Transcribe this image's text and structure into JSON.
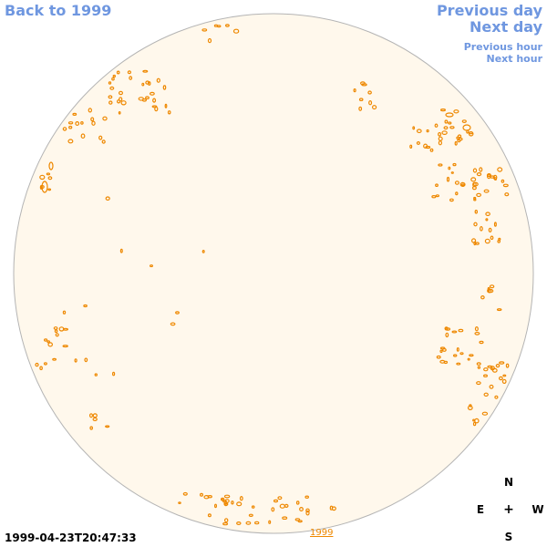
{
  "nav": {
    "back": "Back to 1999",
    "previous_day": "Previous day",
    "next_day": "Next day",
    "previous_hour": "Previous hour",
    "next_hour": "Next hour"
  },
  "compass": {
    "north": "N",
    "east": "E",
    "center": "+",
    "west": "W",
    "south": "S"
  },
  "timestamp": "1999-04-23T20:47:33",
  "year_link": "1999",
  "colors": {
    "disk_fill": "#fff8ec",
    "disk_edge": "#b4b4b4",
    "contour": "#ee8800",
    "link": "#6f97e0"
  }
}
